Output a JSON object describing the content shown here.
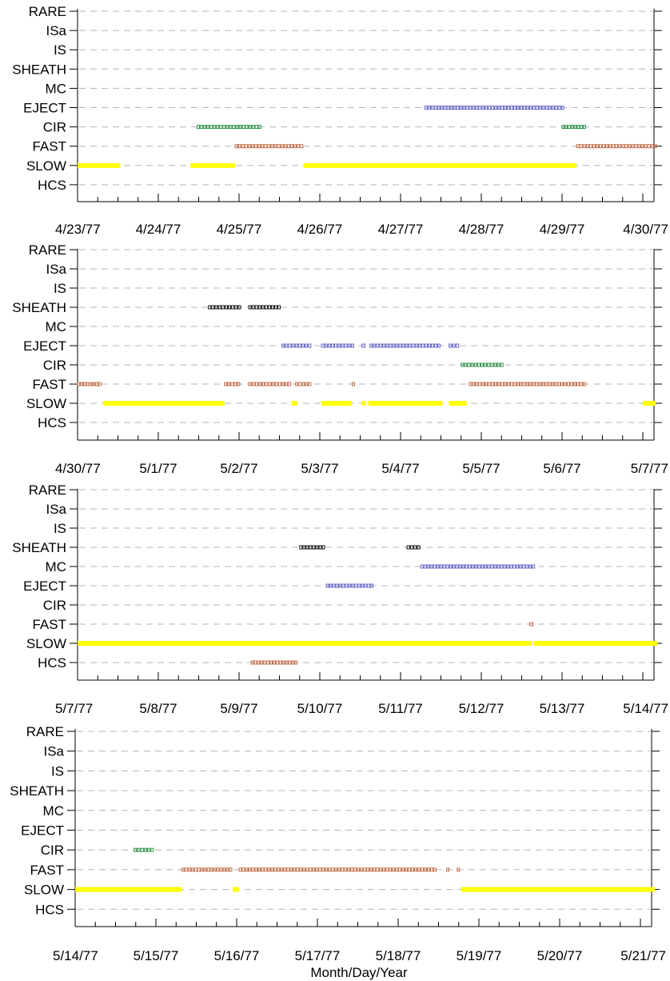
{
  "chart_data": {
    "type": "timeline",
    "xlabel": "Month/Day/Year",
    "categories": [
      "RARE",
      "ISa",
      "IS",
      "SHEATH",
      "MC",
      "EJECT",
      "CIR",
      "FAST",
      "SLOW",
      "HCS"
    ],
    "colors": {
      "SLOW": "#ffff00",
      "FAST": "#c0643c",
      "CIR": "#1e8c3c",
      "EJECT": "#5a5ac8",
      "MC": "#5a5ac8",
      "SHEATH": "#000000",
      "HCS": "#c0643c",
      "grid": "#b4b4b4"
    },
    "panels": [
      {
        "x_ticks": [
          "4/23/77",
          "4/24/77",
          "4/25/77",
          "4/26/77",
          "4/27/77",
          "4/28/77",
          "4/29/77",
          "4/30/77"
        ],
        "intervals": [
          {
            "category": "SLOW",
            "start": 0.0,
            "end": 0.53
          },
          {
            "category": "SLOW",
            "start": 1.4,
            "end": 1.95
          },
          {
            "category": "SLOW",
            "start": 2.8,
            "end": 6.18
          },
          {
            "category": "FAST",
            "start": 1.95,
            "end": 2.8
          },
          {
            "category": "FAST",
            "start": 6.18,
            "end": 7.18
          },
          {
            "category": "CIR",
            "start": 1.48,
            "end": 2.28
          },
          {
            "category": "CIR",
            "start": 6.0,
            "end": 6.3
          },
          {
            "category": "EJECT",
            "start": 4.3,
            "end": 6.03
          }
        ]
      },
      {
        "x_ticks": [
          "4/30/77",
          "5/1/77",
          "5/2/77",
          "5/3/77",
          "5/4/77",
          "5/5/77",
          "5/6/77",
          "5/7/77"
        ],
        "intervals": [
          {
            "category": "SLOW",
            "start": 0.32,
            "end": 1.82
          },
          {
            "category": "SLOW",
            "start": 2.65,
            "end": 2.72
          },
          {
            "category": "SLOW",
            "start": 3.02,
            "end": 3.4
          },
          {
            "category": "SLOW",
            "start": 3.52,
            "end": 3.57
          },
          {
            "category": "SLOW",
            "start": 3.6,
            "end": 4.52
          },
          {
            "category": "SLOW",
            "start": 4.6,
            "end": 4.82
          },
          {
            "category": "SLOW",
            "start": 7.0,
            "end": 7.16
          },
          {
            "category": "FAST",
            "start": 0.0,
            "end": 0.3
          },
          {
            "category": "FAST",
            "start": 1.82,
            "end": 2.02
          },
          {
            "category": "FAST",
            "start": 2.12,
            "end": 2.65
          },
          {
            "category": "FAST",
            "start": 2.7,
            "end": 2.9
          },
          {
            "category": "FAST",
            "start": 3.4,
            "end": 3.44
          },
          {
            "category": "FAST",
            "start": 4.85,
            "end": 6.3
          },
          {
            "category": "CIR",
            "start": 4.75,
            "end": 5.28
          },
          {
            "category": "EJECT",
            "start": 2.53,
            "end": 2.9
          },
          {
            "category": "EJECT",
            "start": 3.02,
            "end": 3.43
          },
          {
            "category": "EJECT",
            "start": 3.52,
            "end": 3.57
          },
          {
            "category": "EJECT",
            "start": 3.62,
            "end": 4.5
          },
          {
            "category": "EJECT",
            "start": 4.6,
            "end": 4.73
          },
          {
            "category": "SHEATH",
            "start": 1.62,
            "end": 2.03
          },
          {
            "category": "SHEATH",
            "start": 2.12,
            "end": 2.52
          }
        ]
      },
      {
        "x_ticks": [
          "5/7/77",
          "5/8/77",
          "5/9/77",
          "5/10/77",
          "5/11/77",
          "5/12/77",
          "5/13/77",
          "5/14/77"
        ],
        "intervals": [
          {
            "category": "SLOW",
            "start": 0.0,
            "end": 5.62
          },
          {
            "category": "SLOW",
            "start": 5.65,
            "end": 7.18
          },
          {
            "category": "FAST",
            "start": 5.6,
            "end": 5.65
          },
          {
            "category": "HCS",
            "start": 2.15,
            "end": 2.73
          },
          {
            "category": "SHEATH",
            "start": 2.75,
            "end": 3.07
          },
          {
            "category": "SHEATH",
            "start": 4.08,
            "end": 4.25
          },
          {
            "category": "EJECT",
            "start": 3.08,
            "end": 3.67
          },
          {
            "category": "MC",
            "start": 4.25,
            "end": 5.67
          }
        ]
      },
      {
        "x_ticks": [
          "5/14/77",
          "5/15/77",
          "5/16/77",
          "5/17/77",
          "5/18/77",
          "5/19/77",
          "5/20/77",
          "5/21/77"
        ],
        "intervals": [
          {
            "category": "SLOW",
            "start": 0.0,
            "end": 1.32
          },
          {
            "category": "SLOW",
            "start": 1.95,
            "end": 2.03
          },
          {
            "category": "SLOW",
            "start": 4.78,
            "end": 7.18
          },
          {
            "category": "FAST",
            "start": 1.32,
            "end": 1.95
          },
          {
            "category": "FAST",
            "start": 2.03,
            "end": 4.48
          },
          {
            "category": "FAST",
            "start": 4.6,
            "end": 4.64
          },
          {
            "category": "FAST",
            "start": 4.73,
            "end": 4.77
          },
          {
            "category": "CIR",
            "start": 0.73,
            "end": 0.98
          }
        ]
      }
    ]
  }
}
